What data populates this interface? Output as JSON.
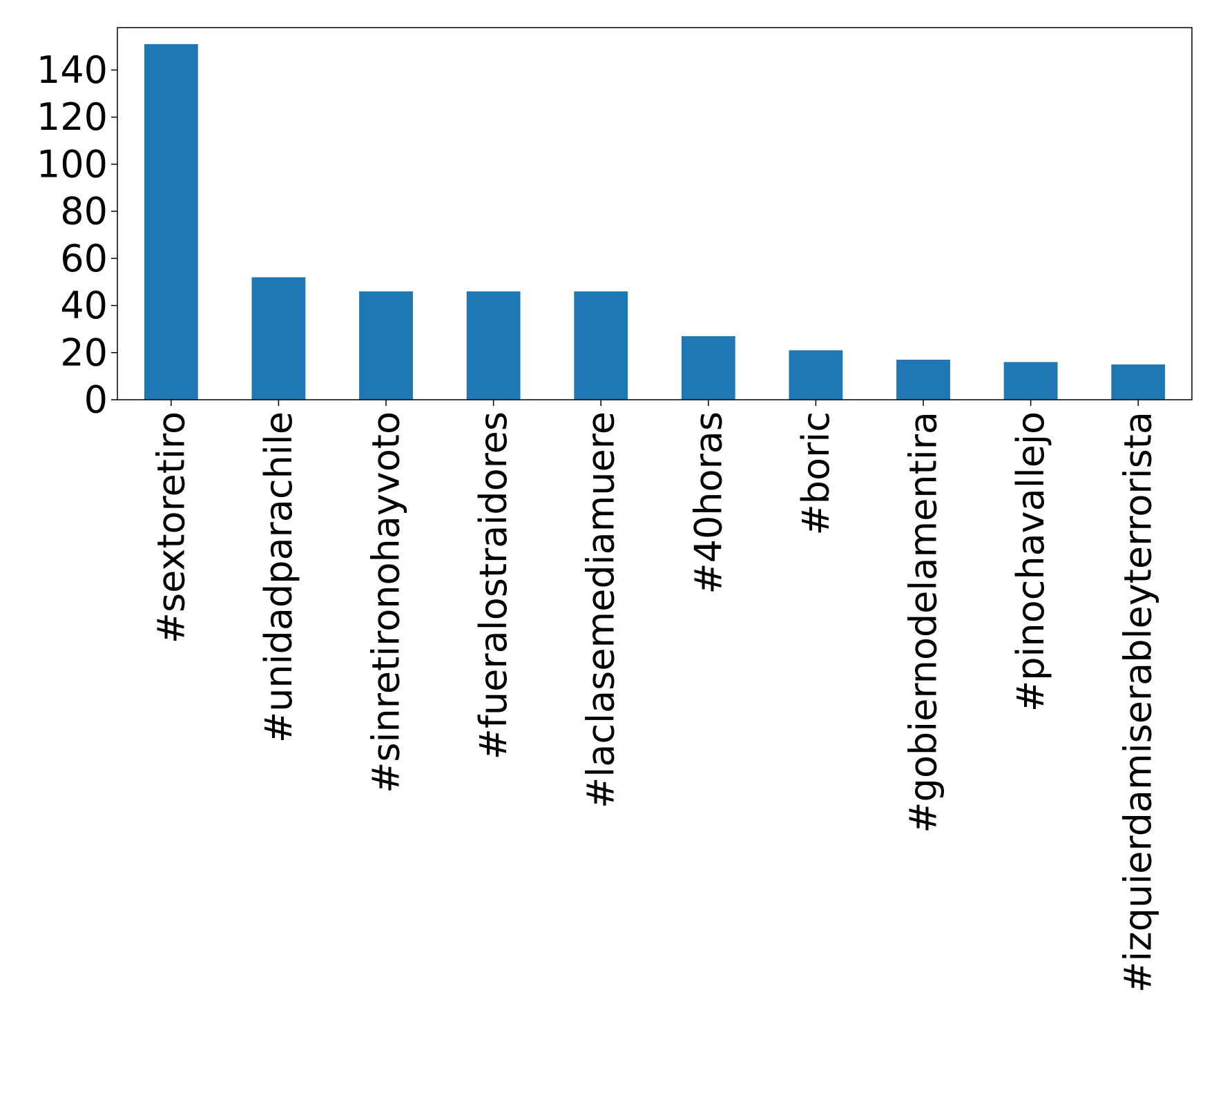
{
  "chart_data": {
    "type": "bar",
    "title": "",
    "xlabel": "",
    "ylabel": "",
    "categories": [
      "#sextoretiro",
      "#unidadparachile",
      "#sinretironohayvoto",
      "#fueralostraidores",
      "#laclasemediamuere",
      "#40horas",
      "#boric",
      "#gobiernodelamentira",
      "#pinochavallejo",
      "#izquierdamiserableyterrorista"
    ],
    "values": [
      151,
      52,
      46,
      46,
      46,
      27,
      21,
      17,
      16,
      15
    ],
    "ylim": [
      0,
      158
    ],
    "yticks": [
      0,
      20,
      40,
      60,
      80,
      100,
      120,
      140
    ],
    "grid": false,
    "legend": "none",
    "colors": {
      "bar": "#1f77b4",
      "axes": "#000000"
    }
  }
}
